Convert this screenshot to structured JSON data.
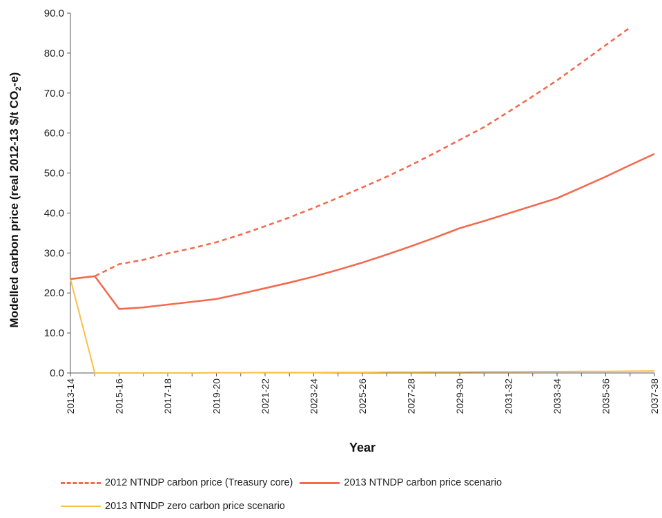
{
  "chart_data": {
    "type": "line",
    "ylabel": "Modelled carbon price (real 2012-13 $/t CO₂-e)",
    "xlabel": "Year",
    "ylim": [
      0,
      90
    ],
    "y_ticks": [
      "0.0",
      "10.0",
      "20.0",
      "30.0",
      "40.0",
      "50.0",
      "60.0",
      "70.0",
      "80.0",
      "90.0"
    ],
    "categories": [
      "2013-14",
      "2014-15",
      "2015-16",
      "2016-17",
      "2017-18",
      "2018-19",
      "2019-20",
      "2020-21",
      "2021-22",
      "2022-23",
      "2023-24",
      "2024-25",
      "2025-26",
      "2026-27",
      "2027-28",
      "2028-29",
      "2029-30",
      "2030-31",
      "2031-32",
      "2032-33",
      "2033-34",
      "2034-35",
      "2035-36",
      "2036-37",
      "2037-38"
    ],
    "x_tick_labels": [
      "2013-14",
      "2015-16",
      "2017-18",
      "2019-20",
      "2021-22",
      "2023-24",
      "2025-26",
      "2027-28",
      "2029-30",
      "2031-32",
      "2033-34",
      "2035-36",
      "2037-38"
    ],
    "grid": false,
    "legend_position": "bottom",
    "series": [
      {
        "name": "2012 NTNDP carbon price (Treasury core)",
        "color": "#F26B4F",
        "dash": true,
        "values": [
          23.5,
          24.2,
          27.2,
          28.3,
          29.9,
          31.2,
          32.7,
          34.6,
          36.7,
          38.9,
          41.3,
          43.8,
          46.4,
          49.1,
          52.0,
          55.1,
          58.3,
          61.5,
          65.3,
          69.2,
          73.2,
          77.6,
          82.0,
          86.4,
          null
        ]
      },
      {
        "name": "2013 NTNDP carbon price scenario",
        "color": "#F26B4F",
        "dash": false,
        "values": [
          23.5,
          24.2,
          16.0,
          16.4,
          17.1,
          17.8,
          18.5,
          19.8,
          21.2,
          22.6,
          24.1,
          25.8,
          27.6,
          29.6,
          31.7,
          33.9,
          36.2,
          38.0,
          39.9,
          41.8,
          43.7,
          46.4,
          49.1,
          52.0,
          54.8
        ]
      },
      {
        "name": "2013 NTNDP zero carbon price scenario",
        "color": "#FBBF45",
        "dash": false,
        "values": [
          23.5,
          0.0,
          0.0,
          0.0,
          0.0,
          0.0,
          0.05,
          0.05,
          0.1,
          0.1,
          0.1,
          0.15,
          0.15,
          0.2,
          0.2,
          0.25,
          0.25,
          0.3,
          0.3,
          0.35,
          0.35,
          0.4,
          0.4,
          0.45,
          0.5
        ]
      }
    ]
  }
}
